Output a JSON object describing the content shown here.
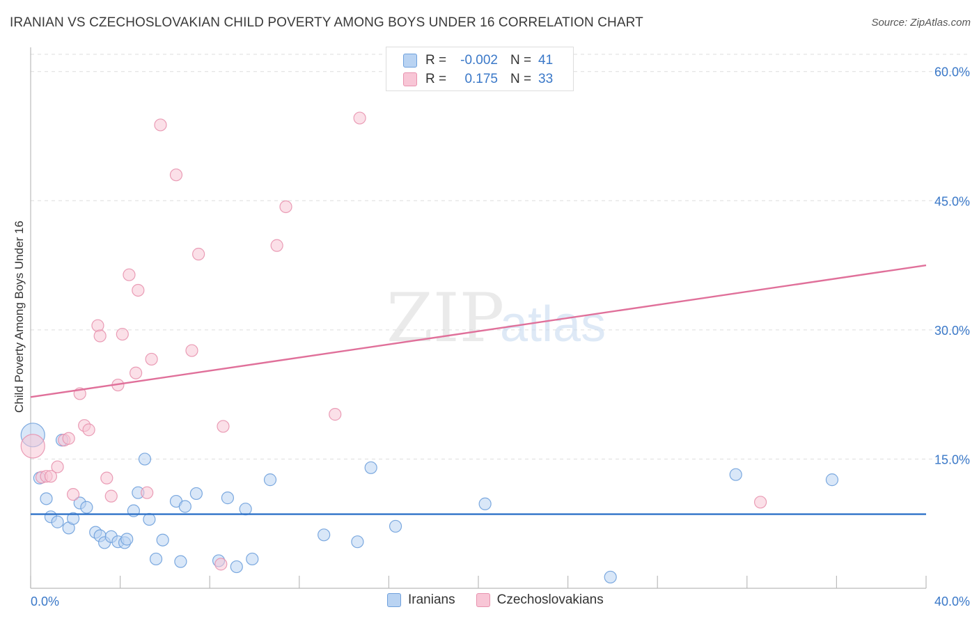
{
  "title": "IRANIAN VS CZECHOSLOVAKIAN CHILD POVERTY AMONG BOYS UNDER 16 CORRELATION CHART",
  "source": "Source: ZipAtlas.com",
  "watermark": {
    "zip": "ZIP",
    "atlas": "atlas"
  },
  "colors": {
    "blue_fill": "#b9d3f2",
    "blue_stroke": "#6ea0dc",
    "blue_line": "#2f72c8",
    "pink_fill": "#f8c6d6",
    "pink_stroke": "#e892ae",
    "pink_line": "#e0709a",
    "axis_label": "#3a78c8"
  },
  "legend": {
    "rows": [
      {
        "r_label": "R =",
        "r_value": "-0.002",
        "n_label": "N =",
        "n_value": "41"
      },
      {
        "r_label": "R =",
        "r_value": "0.175",
        "n_label": "N =",
        "n_value": "33"
      }
    ]
  },
  "bottom_legend": [
    "Iranians",
    "Czechoslovakians"
  ],
  "chart_data": {
    "type": "scatter",
    "title": "IRANIAN VS CZECHOSLOVAKIAN CHILD POVERTY AMONG BOYS UNDER 16 CORRELATION CHART",
    "xlabel": "",
    "ylabel": "Child Poverty Among Boys Under 16",
    "xlim": [
      0,
      40
    ],
    "ylim": [
      0,
      62
    ],
    "x_tick_labels": [
      "0.0%",
      "40.0%"
    ],
    "y_ticks": [
      15,
      30,
      45,
      60
    ],
    "y_tick_labels": [
      "15.0%",
      "30.0%",
      "45.0%",
      "60.0%"
    ],
    "grid": true,
    "legend_placement": "top-center",
    "series": [
      {
        "name": "Iranians",
        "points": [
          [
            0.1,
            17.8
          ],
          [
            0.4,
            12.8
          ],
          [
            0.7,
            10.4
          ],
          [
            0.9,
            8.3
          ],
          [
            1.2,
            7.7
          ],
          [
            1.4,
            17.2
          ],
          [
            1.7,
            7.0
          ],
          [
            1.9,
            8.1
          ],
          [
            2.2,
            9.9
          ],
          [
            2.5,
            9.4
          ],
          [
            2.9,
            6.5
          ],
          [
            3.1,
            6.1
          ],
          [
            3.3,
            5.3
          ],
          [
            3.6,
            6.0
          ],
          [
            3.9,
            5.4
          ],
          [
            4.2,
            5.3
          ],
          [
            4.3,
            5.7
          ],
          [
            4.6,
            9.0
          ],
          [
            4.8,
            11.1
          ],
          [
            5.1,
            15.0
          ],
          [
            5.3,
            8.0
          ],
          [
            5.6,
            3.4
          ],
          [
            5.9,
            5.6
          ],
          [
            6.5,
            10.1
          ],
          [
            6.7,
            3.1
          ],
          [
            6.9,
            9.5
          ],
          [
            7.4,
            11.0
          ],
          [
            8.4,
            3.2
          ],
          [
            8.8,
            10.5
          ],
          [
            9.2,
            2.5
          ],
          [
            9.6,
            9.2
          ],
          [
            9.9,
            3.4
          ],
          [
            10.7,
            12.6
          ],
          [
            13.1,
            6.2
          ],
          [
            14.6,
            5.4
          ],
          [
            15.2,
            14.0
          ],
          [
            16.3,
            7.2
          ],
          [
            20.3,
            9.8
          ],
          [
            25.9,
            1.3
          ],
          [
            31.5,
            13.2
          ],
          [
            35.8,
            12.6
          ]
        ]
      },
      {
        "name": "Czechoslovakians",
        "points": [
          [
            0.1,
            16.5
          ],
          [
            0.5,
            12.9
          ],
          [
            0.7,
            13.0
          ],
          [
            0.9,
            13.0
          ],
          [
            1.2,
            14.1
          ],
          [
            1.5,
            17.2
          ],
          [
            1.7,
            17.4
          ],
          [
            1.9,
            10.9
          ],
          [
            2.2,
            22.6
          ],
          [
            2.4,
            18.9
          ],
          [
            2.6,
            18.4
          ],
          [
            3.0,
            30.5
          ],
          [
            3.1,
            29.3
          ],
          [
            3.4,
            12.8
          ],
          [
            3.6,
            10.7
          ],
          [
            3.9,
            23.6
          ],
          [
            4.1,
            29.5
          ],
          [
            4.4,
            36.4
          ],
          [
            4.7,
            25.0
          ],
          [
            4.8,
            34.6
          ],
          [
            5.2,
            11.1
          ],
          [
            5.4,
            26.6
          ],
          [
            5.8,
            53.8
          ],
          [
            6.5,
            48.0
          ],
          [
            7.2,
            27.6
          ],
          [
            7.5,
            38.8
          ],
          [
            8.5,
            2.8
          ],
          [
            8.6,
            18.8
          ],
          [
            11.0,
            39.8
          ],
          [
            11.4,
            44.3
          ],
          [
            13.6,
            20.2
          ],
          [
            14.7,
            54.6
          ],
          [
            32.6,
            10.0
          ]
        ]
      }
    ],
    "trend_lines": [
      {
        "series": "Iranians",
        "x": [
          0,
          40
        ],
        "y": [
          8.6,
          8.6
        ]
      },
      {
        "series": "Czechoslovakians",
        "x": [
          0,
          40
        ],
        "y": [
          22.2,
          37.5
        ]
      }
    ]
  }
}
